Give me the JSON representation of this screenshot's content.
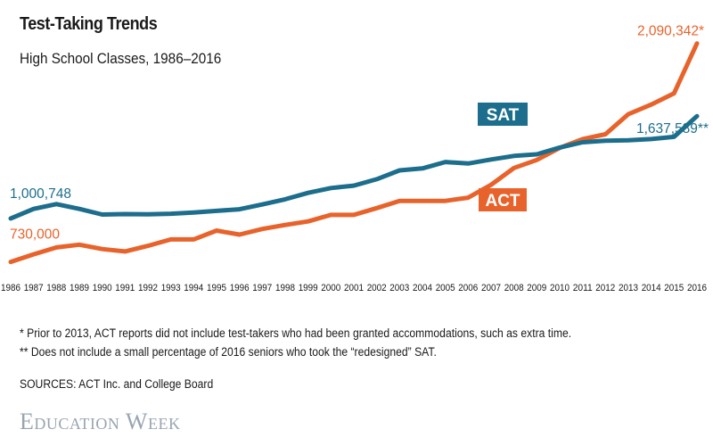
{
  "chart_data": {
    "type": "line",
    "title": "Test-Taking Trends",
    "subtitle": "High School Classes, 1986–2016",
    "categories": [
      "1986",
      "1987",
      "1988",
      "1989",
      "1990",
      "1991",
      "1992",
      "1993",
      "1994",
      "1995",
      "1996",
      "1997",
      "1998",
      "1999",
      "2000",
      "2001",
      "2002",
      "2003",
      "2004",
      "2005",
      "2006",
      "2007",
      "2008",
      "2009",
      "2010",
      "2011",
      "2012",
      "2013",
      "2014",
      "2015",
      "2016"
    ],
    "ylim": [
      700000,
      2150000
    ],
    "series": [
      {
        "name": "SAT",
        "color": "#1c6e8c",
        "values": [
          1000748,
          1060000,
          1090000,
          1060000,
          1025000,
          1028000,
          1026000,
          1030000,
          1038000,
          1048000,
          1058000,
          1088000,
          1120000,
          1160000,
          1190000,
          1205000,
          1245000,
          1300000,
          1312000,
          1352000,
          1343000,
          1368000,
          1390000,
          1400000,
          1442000,
          1475000,
          1485000,
          1487000,
          1495000,
          1509000,
          1637589
        ],
        "start_label": "1,000,748",
        "end_label": "1,637,589**"
      },
      {
        "name": "ACT",
        "color": "#e8632b",
        "values": [
          730000,
          777000,
          820000,
          837000,
          810000,
          795000,
          830000,
          870000,
          870000,
          925000,
          900000,
          935000,
          960000,
          982000,
          1023000,
          1023000,
          1065000,
          1110000,
          1110000,
          1110000,
          1130000,
          1210000,
          1315000,
          1365000,
          1440000,
          1495000,
          1525000,
          1650000,
          1710000,
          1780000,
          2090342
        ],
        "start_label": "730,000",
        "end_label": "2,090,342*"
      }
    ]
  },
  "footnotes": {
    "note1": "* Prior to 2013, ACT reports did not include test-takers who had been granted accommodations, such as extra time.",
    "note2": "** Does not include a small percentage of 2016 seniors who took the “redesigned” SAT.",
    "sources": "SOURCES: ACT Inc. and College Board"
  },
  "brand": "Education Week"
}
